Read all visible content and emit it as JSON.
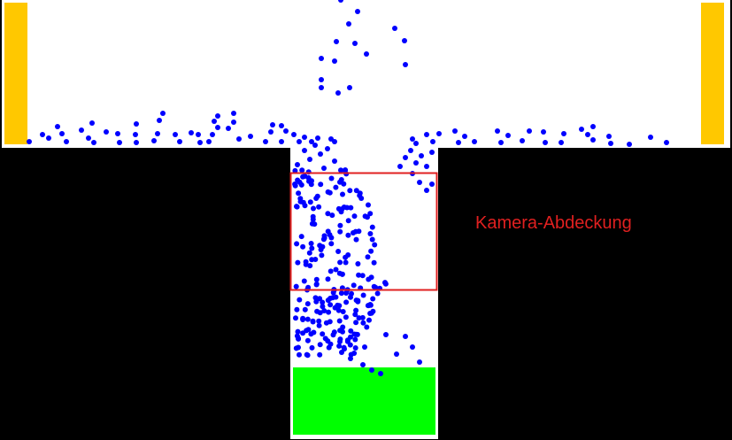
{
  "colors": {
    "background": "#000000",
    "chamber": "#FFFFFF",
    "wall_bar": "#FFC800",
    "particle": "#0000FF",
    "camera_cover_outline": "#E02020",
    "collector": "#00FF00",
    "label": "#E02020"
  },
  "labels": {
    "camera_cover": "Kamera-Abdeckung"
  }
}
